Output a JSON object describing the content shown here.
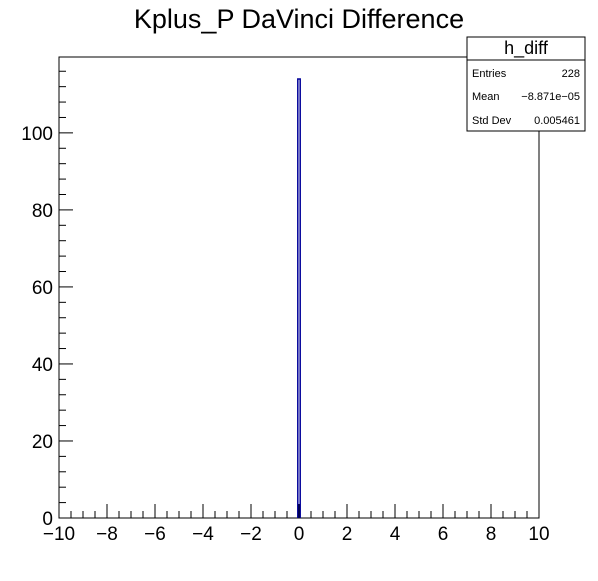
{
  "chart_data": {
    "type": "bar",
    "title": "Kplus_P DaVinci Difference",
    "xlabel": "",
    "ylabel": "",
    "xlim": [
      -10,
      10
    ],
    "ylim": [
      0,
      119.7
    ],
    "x_ticks": [
      -10,
      -8,
      -6,
      -4,
      -2,
      0,
      2,
      4,
      6,
      8,
      10
    ],
    "x_tick_labels": [
      "−10",
      "−8",
      "−6",
      "−4",
      "−2",
      "0",
      "2",
      "4",
      "6",
      "8",
      "10"
    ],
    "y_ticks": [
      0,
      20,
      40,
      60,
      80,
      100
    ],
    "y_tick_labels": [
      "0",
      "20",
      "40",
      "60",
      "80",
      "100"
    ],
    "bins": [
      {
        "x_low": -0.05,
        "x_high": 0.05,
        "value": 114
      }
    ],
    "line_color": "#000099",
    "grid": false,
    "legend": {
      "placement": "top-right",
      "name": "h_diff",
      "rows": [
        {
          "label": "Entries",
          "value": "228"
        },
        {
          "label": "Mean",
          "value": "−8.871e−05"
        },
        {
          "label": "Std Dev",
          "value": "0.005461"
        }
      ]
    }
  }
}
